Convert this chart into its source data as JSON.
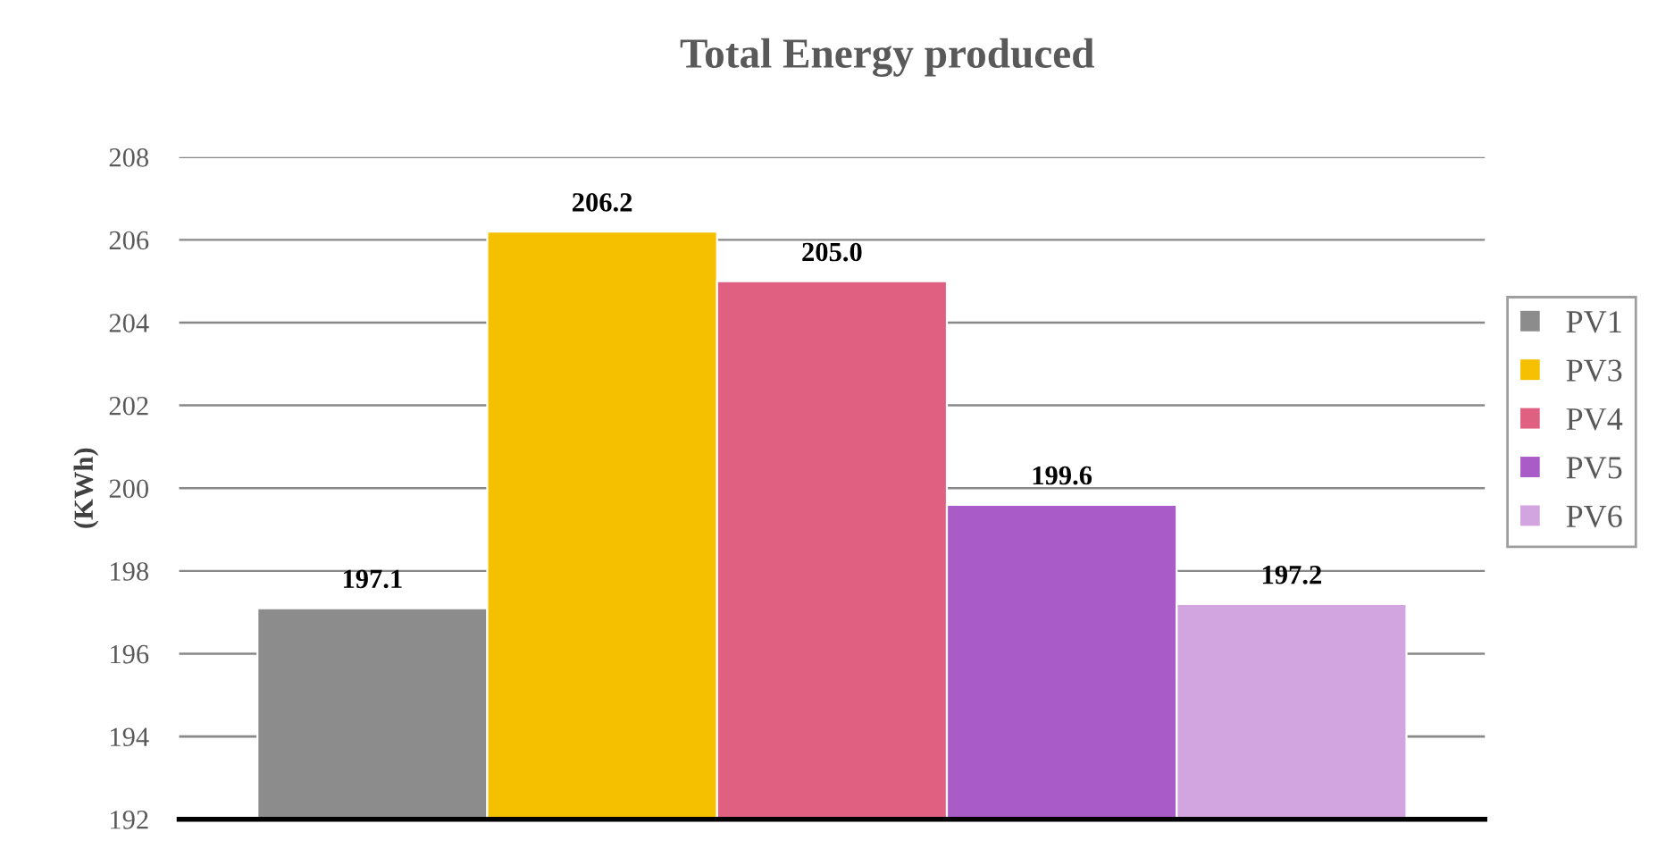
{
  "chart_data": {
    "type": "bar",
    "title": "Total Energy produced",
    "ylabel": "(KWh)",
    "categories": [
      null
    ],
    "series": [
      {
        "name": "PV1",
        "color": "#8c8c8c",
        "values": [
          197.1
        ],
        "value_labels": [
          "197.1"
        ]
      },
      {
        "name": "PV3",
        "color": "#f5c000",
        "values": [
          206.2
        ],
        "value_labels": [
          "206.2"
        ]
      },
      {
        "name": "PV4",
        "color": "#df6080",
        "values": [
          205.0
        ],
        "value_labels": [
          "205.0"
        ]
      },
      {
        "name": "PV5",
        "color": "#a95cc8",
        "values": [
          199.6
        ],
        "value_labels": [
          "199.6"
        ]
      },
      {
        "name": "PV6",
        "color": "#d2a4e0",
        "values": [
          197.2
        ],
        "value_labels": [
          "197.2"
        ]
      }
    ],
    "ylim": [
      192,
      208
    ],
    "yticks": [
      192,
      194,
      196,
      198,
      200,
      202,
      204,
      206,
      208
    ],
    "grid": "y",
    "legend": "right"
  }
}
